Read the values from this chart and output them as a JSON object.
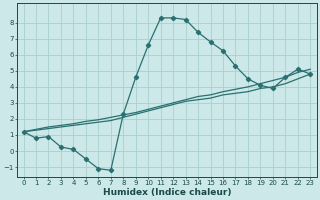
{
  "xlabel": "Humidex (Indice chaleur)",
  "bg_color": "#cce8e8",
  "grid_color": "#aad0d0",
  "line_color": "#2a7070",
  "xlim": [
    -0.5,
    23.5
  ],
  "ylim": [
    -1.6,
    9.2
  ],
  "xticks": [
    0,
    1,
    2,
    3,
    4,
    5,
    6,
    7,
    8,
    9,
    10,
    11,
    12,
    13,
    14,
    15,
    16,
    17,
    18,
    19,
    20,
    21,
    22,
    23
  ],
  "yticks": [
    -1,
    0,
    1,
    2,
    3,
    4,
    5,
    6,
    7,
    8
  ],
  "line1_x": [
    0,
    1,
    2,
    3,
    4,
    5,
    6,
    7,
    8,
    9,
    10,
    11,
    12,
    13,
    14,
    15,
    16,
    17,
    18,
    19,
    20,
    21,
    22,
    23
  ],
  "line1_y": [
    1.2,
    0.8,
    0.9,
    0.25,
    0.1,
    -0.5,
    -1.1,
    -1.2,
    2.3,
    4.6,
    6.6,
    8.3,
    8.3,
    8.2,
    7.4,
    6.8,
    6.25,
    5.3,
    4.5,
    4.1,
    3.9,
    4.6,
    5.1,
    4.8
  ],
  "line2_x": [
    0,
    1,
    2,
    3,
    4,
    5,
    6,
    7,
    8,
    9,
    10,
    11,
    12,
    13,
    14,
    15,
    16,
    17,
    18,
    19,
    20,
    21,
    22,
    23
  ],
  "line2_y": [
    1.2,
    1.3,
    1.4,
    1.5,
    1.6,
    1.7,
    1.8,
    1.9,
    2.1,
    2.3,
    2.5,
    2.7,
    2.9,
    3.1,
    3.2,
    3.3,
    3.5,
    3.6,
    3.7,
    3.9,
    4.0,
    4.2,
    4.5,
    4.8
  ],
  "line3_x": [
    0,
    1,
    2,
    3,
    4,
    5,
    6,
    7,
    8,
    9,
    10,
    11,
    12,
    13,
    14,
    15,
    16,
    17,
    18,
    19,
    20,
    21,
    22,
    23
  ],
  "line3_y": [
    1.2,
    1.35,
    1.5,
    1.6,
    1.7,
    1.85,
    1.95,
    2.1,
    2.25,
    2.4,
    2.6,
    2.8,
    3.0,
    3.2,
    3.4,
    3.5,
    3.7,
    3.85,
    4.0,
    4.2,
    4.4,
    4.6,
    4.9,
    5.1
  ]
}
